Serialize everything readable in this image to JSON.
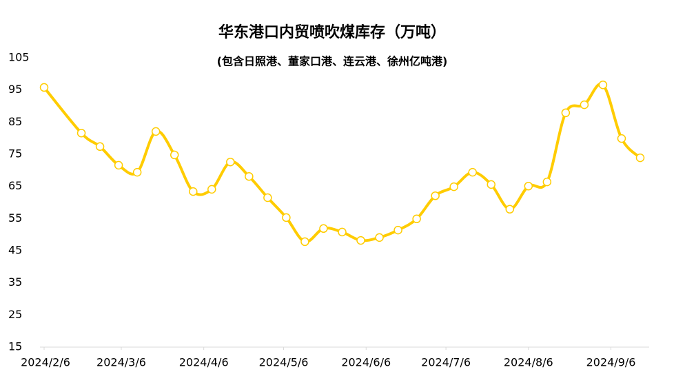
{
  "chart_data": {
    "type": "line",
    "title": "华东港口内贸喷吹煤库存（万吨）",
    "subtitle": "(包含日照港、董家口港、连云港、徐州亿吨港)",
    "x": [
      "2024/2/6",
      "2024/2/20",
      "2024/2/27",
      "2024/3/5",
      "2024/3/12",
      "2024/3/19",
      "2024/3/26",
      "2024/4/2",
      "2024/4/9",
      "2024/4/16",
      "2024/4/23",
      "2024/4/30",
      "2024/5/7",
      "2024/5/14",
      "2024/5/21",
      "2024/5/28",
      "2024/6/4",
      "2024/6/11",
      "2024/6/18",
      "2024/6/25",
      "2024/7/2",
      "2024/7/9",
      "2024/7/16",
      "2024/7/23",
      "2024/7/30",
      "2024/8/6",
      "2024/8/13",
      "2024/8/20",
      "2024/8/27",
      "2024/9/3",
      "2024/9/10",
      "2024/9/17"
    ],
    "series": [
      {
        "color": "#FFCC00",
        "values": [
          95.8,
          81.6,
          77.4,
          71.6,
          69.4,
          82.1,
          74.8,
          63.4,
          64.1,
          72.6,
          68.1,
          61.5,
          55.3,
          47.8,
          51.9,
          50.8,
          48.2,
          49.1,
          51.4,
          54.9,
          62.1,
          64.9,
          69.4,
          65.6,
          57.9,
          65.1,
          66.4,
          87.9,
          90.4,
          96.6,
          79.9,
          73.9
        ]
      }
    ],
    "xticks": [
      "2024/2/6",
      "2024/3/6",
      "2024/4/6",
      "2024/5/6",
      "2024/6/6",
      "2024/7/6",
      "2024/8/6",
      "2024/9/6"
    ],
    "ylim": [
      15,
      105
    ],
    "yticks": [
      15,
      25,
      35,
      45,
      55,
      65,
      75,
      85,
      95,
      105
    ],
    "grid": false
  }
}
